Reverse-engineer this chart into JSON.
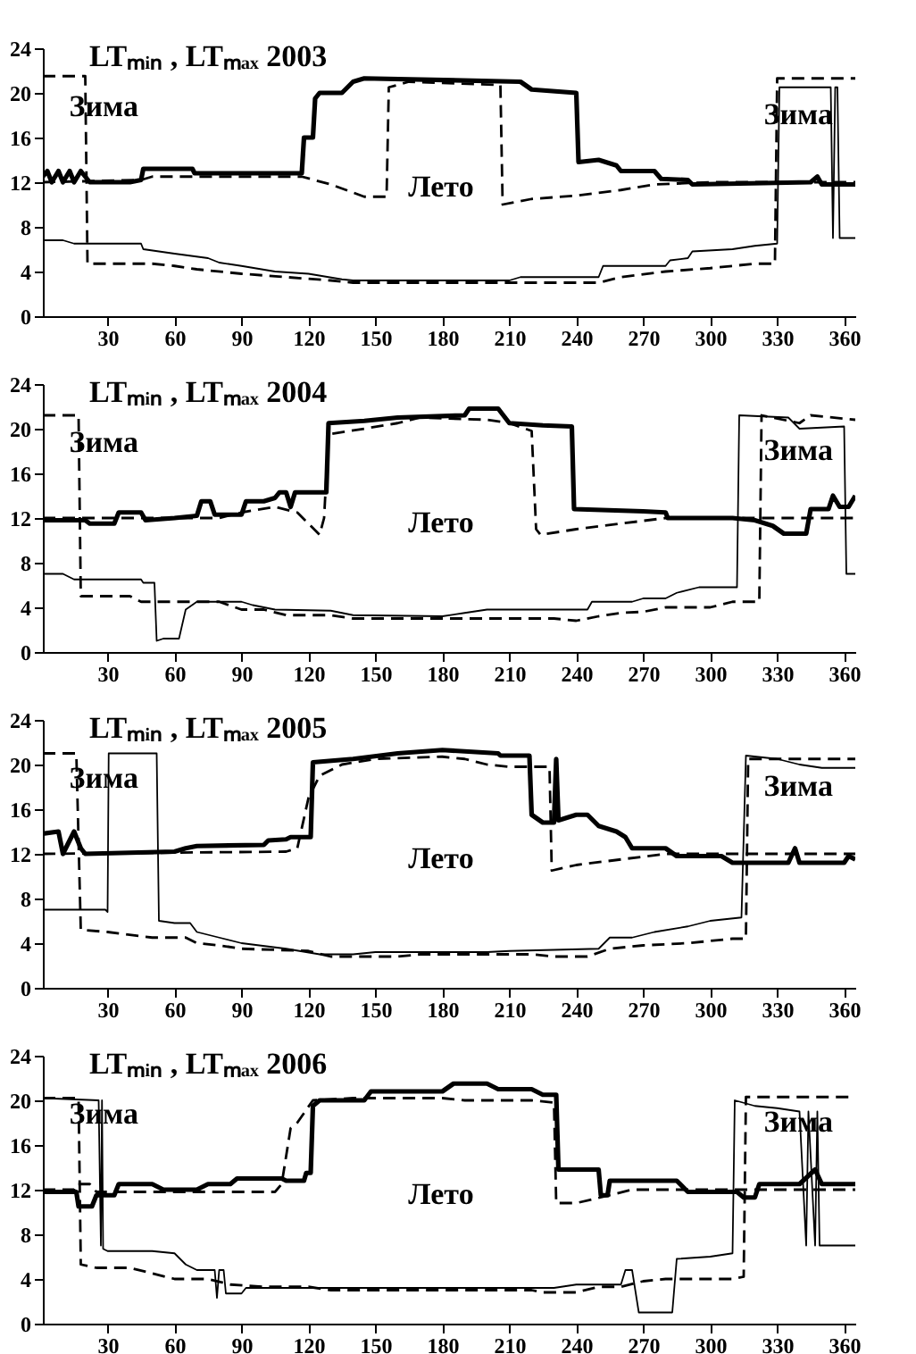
{
  "chart_data": [
    {
      "type": "line",
      "title": "LTₘᵢₙ , LTₘₐₓ   2003",
      "xlim": [
        1,
        365
      ],
      "xticks": [
        30,
        60,
        90,
        120,
        150,
        180,
        210,
        240,
        270,
        300,
        330,
        360
      ],
      "ylim": [
        0,
        24
      ],
      "yticks": [
        0,
        4,
        8,
        12,
        16,
        20,
        24
      ],
      "annotations": [
        "Зима",
        "Зима",
        "Лето"
      ],
      "series": [
        {
          "color": "#000000",
          "line_style": "solid",
          "x": [
            1,
            3,
            5,
            8,
            10,
            13,
            15,
            18,
            20,
            22,
            40,
            45,
            46,
            68,
            69,
            117,
            118,
            122,
            123,
            125,
            135,
            140,
            145,
            215,
            220,
            240,
            241,
            250,
            258,
            260,
            275,
            278,
            290,
            292,
            345,
            348,
            350,
            365
          ],
          "values": [
            12.5,
            13,
            12,
            13,
            12,
            13,
            12,
            13,
            12.5,
            12,
            12,
            12.2,
            13.2,
            13.2,
            12.8,
            12.8,
            16,
            16,
            19.5,
            20,
            20,
            21,
            21.3,
            21,
            20.3,
            20,
            13.8,
            14,
            13.5,
            13,
            13,
            12.3,
            12.2,
            11.8,
            12,
            12.5,
            11.8,
            11.8
          ]
        },
        {
          "color": "#000000",
          "line_style": "dashed",
          "x": [
            1,
            45,
            50,
            117,
            130,
            145,
            155,
            156,
            165,
            206,
            207,
            220,
            240,
            260,
            275,
            300,
            365
          ],
          "values": [
            12,
            12.2,
            12.5,
            12.5,
            11.8,
            10.7,
            10.7,
            20.5,
            21,
            20.7,
            10,
            10.5,
            10.8,
            11.3,
            11.8,
            12,
            12
          ]
        },
        {
          "color": "#000000",
          "line_style": "solid",
          "x": [
            1,
            10,
            15,
            45,
            46,
            60,
            75,
            80,
            90,
            105,
            120,
            135,
            140,
            210,
            215,
            250,
            252,
            280,
            282,
            290,
            292,
            310,
            320,
            330,
            331,
            354,
            355,
            356,
            357,
            358,
            365
          ],
          "values": [
            6.8,
            6.8,
            6.5,
            6.5,
            6,
            5.6,
            5.2,
            4.8,
            4.5,
            4,
            3.8,
            3.3,
            3.2,
            3.2,
            3.5,
            3.5,
            4.5,
            4.5,
            5,
            5.2,
            5.8,
            6,
            6.3,
            6.5,
            20.5,
            20.5,
            7,
            20.5,
            20.5,
            7,
            7
          ]
        },
        {
          "color": "#000000",
          "line_style": "dashed",
          "x": [
            1,
            20,
            21,
            50,
            60,
            70,
            90,
            110,
            130,
            140,
            250,
            260,
            280,
            300,
            320,
            329,
            330,
            365
          ],
          "values": [
            21.5,
            21.5,
            4.7,
            4.7,
            4.5,
            4.2,
            3.8,
            3.5,
            3.2,
            3,
            3,
            3.5,
            4,
            4.3,
            4.7,
            4.7,
            21.3,
            21.3
          ]
        }
      ]
    },
    {
      "type": "line",
      "title": "LTₘᵢₙ , LTₘₐₓ   2004",
      "xlim": [
        1,
        365
      ],
      "xticks": [
        30,
        60,
        90,
        120,
        150,
        180,
        210,
        240,
        270,
        300,
        330,
        360
      ],
      "ylim": [
        0,
        24
      ],
      "yticks": [
        0,
        4,
        8,
        12,
        16,
        20,
        24
      ],
      "annotations": [
        "Зима",
        "Зима",
        "Лето"
      ],
      "series": [
        {
          "color": "#000000",
          "line_style": "solid",
          "x": [
            1,
            20,
            22,
            33,
            35,
            45,
            47,
            60,
            70,
            72,
            76,
            78,
            90,
            92,
            100,
            105,
            107,
            110,
            112,
            114,
            128,
            129,
            145,
            160,
            190,
            192,
            205,
            210,
            225,
            238,
            239,
            270,
            280,
            281,
            310,
            320,
            328,
            333,
            343,
            345,
            353,
            355,
            358,
            362,
            365
          ],
          "values": [
            11.8,
            11.8,
            11.5,
            11.5,
            12.5,
            12.5,
            11.8,
            12,
            12.2,
            13.5,
            13.5,
            12.3,
            12.3,
            13.5,
            13.5,
            13.8,
            14.3,
            14.3,
            13,
            14.3,
            14.3,
            20.5,
            20.7,
            21,
            21.2,
            21.8,
            21.8,
            20.5,
            20.3,
            20.2,
            12.8,
            12.6,
            12.5,
            12,
            12,
            11.8,
            11.3,
            10.6,
            10.6,
            12.8,
            12.8,
            14,
            13,
            13,
            14
          ]
        },
        {
          "color": "#000000",
          "line_style": "dashed",
          "x": [
            1,
            80,
            90,
            105,
            115,
            125,
            127,
            129,
            145,
            160,
            170,
            200,
            210,
            220,
            222,
            224,
            240,
            260,
            280,
            365
          ],
          "values": [
            12,
            12,
            12.5,
            13,
            12.5,
            10.5,
            12,
            19.5,
            20,
            20.5,
            21,
            20.8,
            20.5,
            19.8,
            11,
            10.5,
            11,
            11.5,
            12,
            12
          ]
        },
        {
          "color": "#000000",
          "line_style": "solid",
          "x": [
            1,
            10,
            15,
            45,
            46,
            51,
            52,
            55,
            62,
            65,
            70,
            90,
            95,
            105,
            130,
            140,
            180,
            190,
            200,
            245,
            247,
            265,
            270,
            280,
            285,
            295,
            312,
            313,
            335,
            340,
            360,
            361,
            365
          ],
          "values": [
            7,
            7,
            6.5,
            6.5,
            6.2,
            6.2,
            1,
            1.2,
            1.2,
            3.8,
            4.5,
            4.5,
            4.2,
            3.8,
            3.7,
            3.3,
            3.2,
            3.5,
            3.8,
            3.8,
            4.5,
            4.5,
            4.8,
            4.8,
            5.3,
            5.8,
            5.8,
            21.2,
            21,
            20,
            20.2,
            7,
            7
          ]
        },
        {
          "color": "#000000",
          "line_style": "dashed",
          "x": [
            1,
            17,
            18,
            40,
            45,
            80,
            90,
            100,
            110,
            130,
            140,
            230,
            240,
            250,
            260,
            270,
            280,
            300,
            310,
            322,
            323,
            340,
            345,
            365
          ],
          "values": [
            21.2,
            21.2,
            5,
            5,
            4.5,
            4.5,
            3.8,
            3.8,
            3.3,
            3.3,
            3,
            3,
            2.8,
            3.2,
            3.5,
            3.6,
            4,
            4,
            4.5,
            4.5,
            21.2,
            20.5,
            21.2,
            20.8
          ]
        }
      ]
    },
    {
      "type": "line",
      "title": "LTₘᵢₙ , LTₘₐₓ   2005",
      "xlim": [
        1,
        365
      ],
      "xticks": [
        30,
        60,
        90,
        120,
        150,
        180,
        210,
        240,
        270,
        300,
        330,
        360
      ],
      "ylim": [
        0,
        24
      ],
      "yticks": [
        0,
        4,
        8,
        12,
        16,
        20,
        24
      ],
      "annotations": [
        "Зима",
        "Зима",
        "Лето"
      ],
      "series": [
        {
          "color": "#000000",
          "line_style": "solid",
          "x": [
            1,
            8,
            10,
            15,
            18,
            20,
            60,
            65,
            70,
            100,
            102,
            110,
            112,
            121,
            122,
            140,
            160,
            180,
            205,
            206,
            219,
            220,
            225,
            230,
            231,
            232,
            240,
            245,
            250,
            258,
            262,
            265,
            280,
            285,
            305,
            310,
            335,
            338,
            340,
            360,
            362,
            365
          ],
          "values": [
            13.8,
            14,
            12,
            14,
            12.5,
            12,
            12.2,
            12.5,
            12.7,
            12.8,
            13.2,
            13.3,
            13.5,
            13.5,
            20.2,
            20.5,
            21,
            21.3,
            21,
            20.8,
            20.8,
            15.5,
            14.8,
            14.8,
            20.5,
            15,
            15.5,
            15.5,
            14.5,
            14,
            13.5,
            12.5,
            12.5,
            11.8,
            11.8,
            11.2,
            11.2,
            12.5,
            11.2,
            11.2,
            11.8,
            11.5
          ]
        },
        {
          "color": "#000000",
          "line_style": "dashed",
          "x": [
            1,
            110,
            115,
            120,
            125,
            135,
            150,
            180,
            190,
            200,
            210,
            228,
            229,
            240,
            260,
            280,
            365
          ],
          "values": [
            12,
            12.2,
            12.5,
            17,
            19,
            20,
            20.5,
            20.7,
            20.5,
            20,
            19.8,
            19.8,
            10.5,
            11,
            11.5,
            12,
            12
          ]
        },
        {
          "color": "#000000",
          "line_style": "solid",
          "x": [
            1,
            29,
            30,
            30.5,
            52,
            53,
            60,
            67,
            70,
            80,
            90,
            110,
            125,
            140,
            150,
            200,
            210,
            250,
            255,
            265,
            275,
            290,
            300,
            314,
            316,
            330,
            340,
            350,
            365
          ],
          "values": [
            7,
            7,
            6.8,
            21,
            21,
            6,
            5.8,
            5.8,
            5,
            4.5,
            4,
            3.5,
            3,
            3,
            3.2,
            3.2,
            3.3,
            3.5,
            4.5,
            4.5,
            5,
            5.5,
            6,
            6.3,
            20.8,
            20.5,
            20,
            19.7,
            19.7
          ]
        },
        {
          "color": "#000000",
          "line_style": "dashed",
          "x": [
            1,
            16,
            18,
            30,
            50,
            65,
            70,
            80,
            90,
            120,
            130,
            160,
            170,
            220,
            230,
            245,
            255,
            270,
            290,
            310,
            316,
            317,
            365
          ],
          "values": [
            21,
            21,
            5.2,
            5,
            4.5,
            4.5,
            4,
            3.8,
            3.5,
            3.3,
            2.8,
            2.8,
            3,
            3,
            2.8,
            2.8,
            3.5,
            3.8,
            4,
            4.4,
            4.4,
            20.5,
            20.5
          ]
        }
      ]
    },
    {
      "type": "line",
      "title": "LTₘᵢₙ , LTₘₐₓ   2006",
      "xlim": [
        1,
        365
      ],
      "xticks": [
        30,
        60,
        90,
        120,
        150,
        180,
        210,
        240,
        270,
        300,
        330,
        360
      ],
      "ylim": [
        0,
        24
      ],
      "yticks": [
        0,
        4,
        8,
        12,
        16,
        20,
        24
      ],
      "annotations": [
        "Зима",
        "Зима",
        "Лето"
      ],
      "series": [
        {
          "color": "#000000",
          "line_style": "solid",
          "x": [
            1,
            16,
            17,
            23,
            25,
            33,
            35,
            50,
            55,
            70,
            75,
            85,
            88,
            108,
            110,
            118,
            119,
            121,
            122,
            125,
            145,
            148,
            180,
            185,
            200,
            205,
            220,
            225,
            231,
            232,
            250,
            251,
            254,
            255,
            285,
            290,
            312,
            315,
            320,
            322,
            340,
            347,
            350,
            365
          ],
          "values": [
            11.8,
            11.8,
            10.5,
            10.5,
            11.5,
            11.5,
            12.5,
            12.5,
            12,
            12,
            12.5,
            12.5,
            13,
            13,
            12.8,
            12.8,
            13.5,
            13.5,
            19.5,
            20,
            20,
            20.8,
            20.8,
            21.5,
            21.5,
            21,
            21,
            20.5,
            20.5,
            13.8,
            13.8,
            11.5,
            11.5,
            12.8,
            12.8,
            11.8,
            11.8,
            11.3,
            11.3,
            12.5,
            12.5,
            13.8,
            12.5,
            12.5
          ]
        },
        {
          "color": "#000000",
          "line_style": "dashed",
          "x": [
            1,
            15,
            16,
            22,
            25,
            105,
            108,
            112,
            115,
            122,
            140,
            180,
            190,
            220,
            230,
            231,
            240,
            255,
            265,
            365
          ],
          "values": [
            12,
            12,
            12.5,
            12.5,
            11.8,
            11.8,
            12.5,
            17.5,
            18,
            20,
            20.2,
            20.2,
            20,
            20,
            19.8,
            10.8,
            10.8,
            11.5,
            12,
            12
          ]
        },
        {
          "color": "#000000",
          "line_style": "solid",
          "x": [
            1,
            26,
            27,
            27.5,
            28,
            30,
            50,
            60,
            65,
            70,
            78,
            79,
            80,
            82,
            83,
            90,
            92,
            230,
            240,
            260,
            262,
            265,
            268,
            283,
            285,
            300,
            310,
            311,
            320,
            330,
            340,
            343,
            344,
            347,
            348,
            349,
            365
          ],
          "values": [
            20.2,
            20,
            7,
            20,
            6.7,
            6.5,
            6.5,
            6.3,
            5.3,
            4.8,
            4.8,
            2.3,
            4.8,
            4.8,
            2.7,
            2.7,
            3.2,
            3.2,
            3.5,
            3.5,
            4.8,
            4.8,
            1,
            1,
            5.8,
            6,
            6.3,
            20,
            19.5,
            19.3,
            19,
            7,
            19,
            7,
            19,
            7,
            7
          ]
        },
        {
          "color": "#000000",
          "line_style": "dashed",
          "x": [
            1,
            17,
            18,
            25,
            40,
            50,
            60,
            75,
            85,
            100,
            120,
            130,
            220,
            225,
            240,
            250,
            260,
            270,
            280,
            310,
            315,
            316,
            365
          ],
          "values": [
            20.2,
            20.2,
            5.3,
            5,
            5,
            4.5,
            4,
            4,
            3.5,
            3.3,
            3.3,
            3,
            3,
            2.8,
            2.8,
            3.3,
            3.3,
            3.8,
            4,
            4,
            4.2,
            20.3,
            20.3
          ]
        }
      ]
    }
  ]
}
